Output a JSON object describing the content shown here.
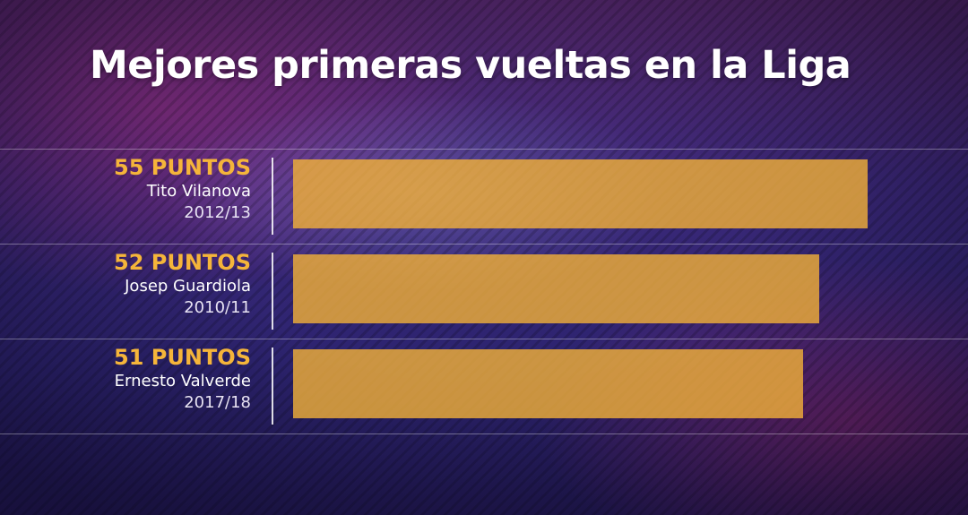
{
  "title": "Mejores primeras vueltas en la Liga",
  "colors": {
    "bar": "#f4b238",
    "points_text": "#f5b53a",
    "title": "#ffffff"
  },
  "chart_data": {
    "type": "bar",
    "orientation": "horizontal",
    "title": "Mejores primeras vueltas en la Liga",
    "categories": [
      "Tito Vilanova",
      "Josep Guardiola",
      "Ernesto Valverde"
    ],
    "series": [
      {
        "values": [
          55,
          52,
          51
        ]
      }
    ],
    "rows": [
      {
        "points": 55,
        "points_label": "55 PUNTOS",
        "coach": "Tito Vilanova",
        "season": "2012/13"
      },
      {
        "points": 52,
        "points_label": "52 PUNTOS",
        "coach": "Josep Guardiola",
        "season": "2010/11"
      },
      {
        "points": 51,
        "points_label": "51 PUNTOS",
        "coach": "Ernesto Valverde",
        "season": "2017/18"
      }
    ],
    "xlim": [
      0,
      55
    ],
    "grid": false,
    "legend": "none"
  }
}
